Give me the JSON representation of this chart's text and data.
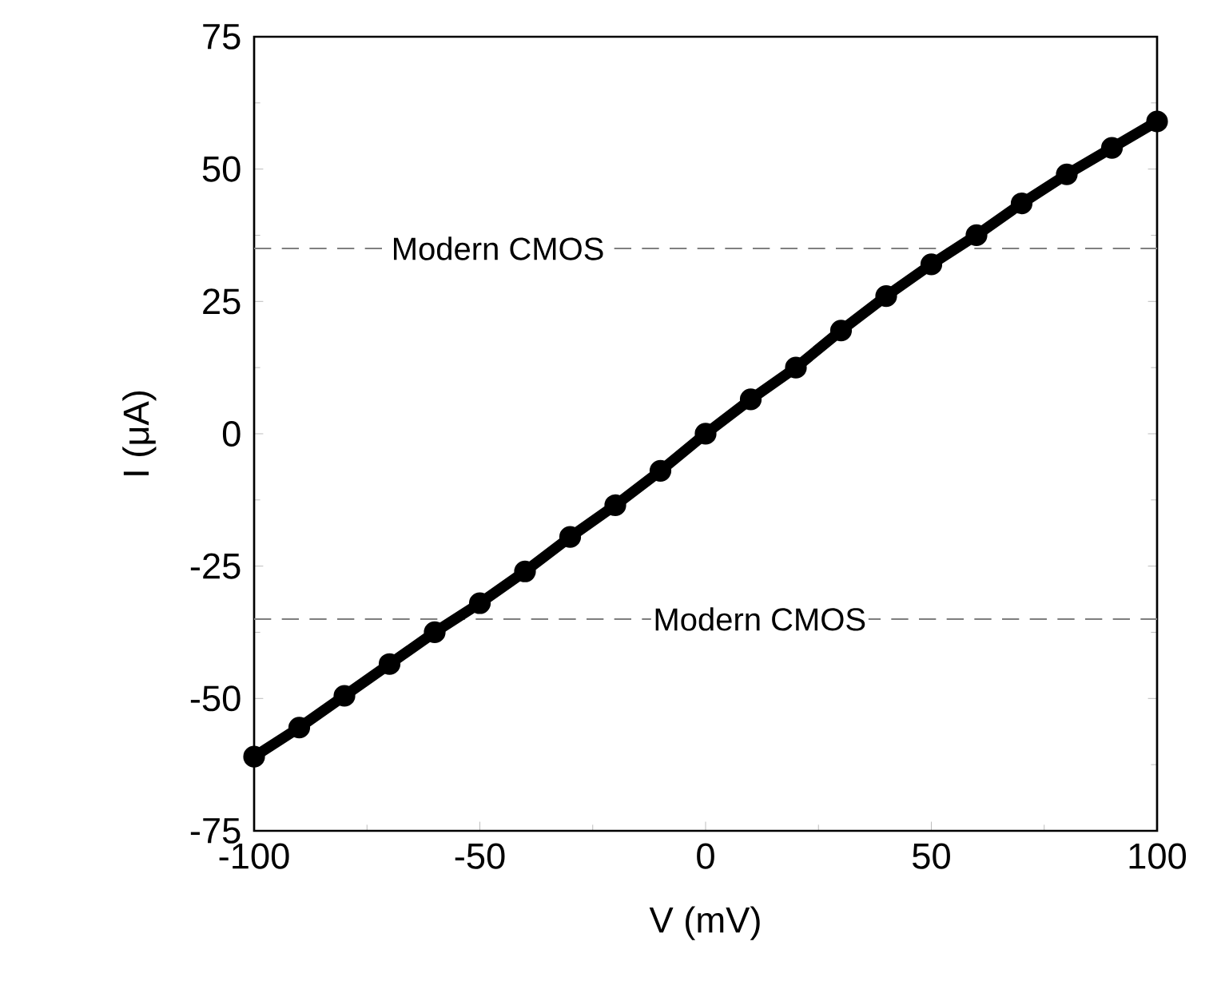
{
  "chart_data": {
    "type": "line",
    "xlabel": "V (mV)",
    "ylabel": "I (μA)",
    "x": [
      -100,
      -90,
      -80,
      -70,
      -60,
      -50,
      -40,
      -30,
      -20,
      -10,
      0,
      10,
      20,
      30,
      40,
      50,
      60,
      70,
      80,
      90,
      100
    ],
    "series": [
      {
        "color": "#000000",
        "values": [
          -61,
          -55.5,
          -49.5,
          -43.5,
          -37.5,
          -32,
          -26,
          -19.5,
          -13.5,
          -7,
          0,
          6.5,
          12.5,
          19.5,
          26,
          32,
          37.5,
          43.5,
          49,
          54,
          59
        ]
      }
    ],
    "xlim": [
      -100,
      100
    ],
    "xticks": [
      -100,
      -50,
      0,
      50,
      100
    ],
    "ylim": [
      -75,
      75
    ],
    "yticks": [
      -75,
      -50,
      -25,
      0,
      25,
      50,
      75
    ],
    "marker": "circle",
    "line_style": "solid",
    "grid": false,
    "ref_lines": [
      {
        "axis": "y",
        "value": 35,
        "label": "Modern CMOS",
        "color": "#808080",
        "line_style": "dashed"
      },
      {
        "axis": "y",
        "value": -35,
        "label": "Modern CMOS",
        "color": "#808080",
        "line_style": "dashed"
      }
    ]
  }
}
